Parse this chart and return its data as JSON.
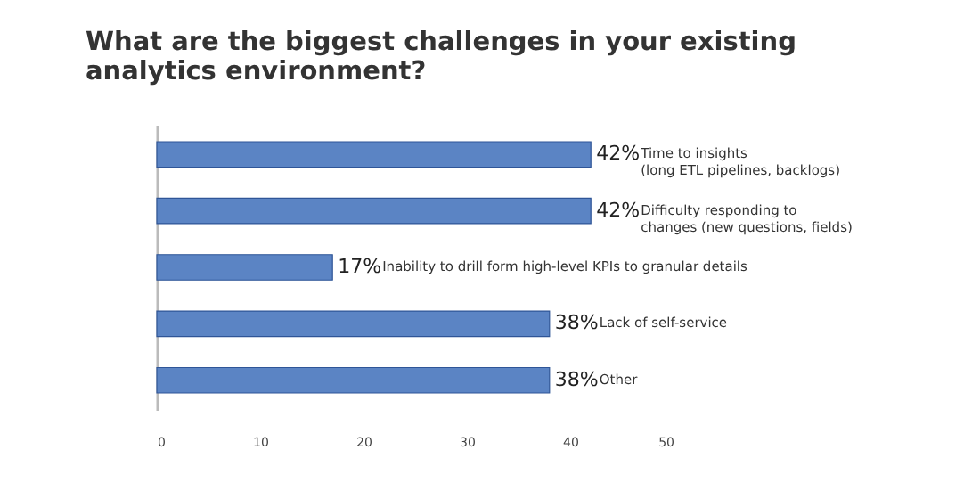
{
  "chart_data": {
    "type": "bar",
    "orientation": "horizontal",
    "title": "What are the biggest challenges in your existing\nanalytics environment?",
    "categories": [
      "Time to insights\n(long ETL pipelines, backlogs)",
      "Difficulty responding to\nchanges (new questions, fields)",
      "Inability to drill form high-level KPIs to granular details",
      "Lack of self-service",
      "Other"
    ],
    "values": [
      42,
      42,
      17,
      38,
      38
    ],
    "value_labels": [
      "42%",
      "42%",
      "17%",
      "38%",
      "38%"
    ],
    "color": "#5b84c4",
    "xlim": [
      0,
      50
    ],
    "xticks": [
      0,
      10,
      20,
      30,
      40,
      50
    ],
    "grid": false
  }
}
